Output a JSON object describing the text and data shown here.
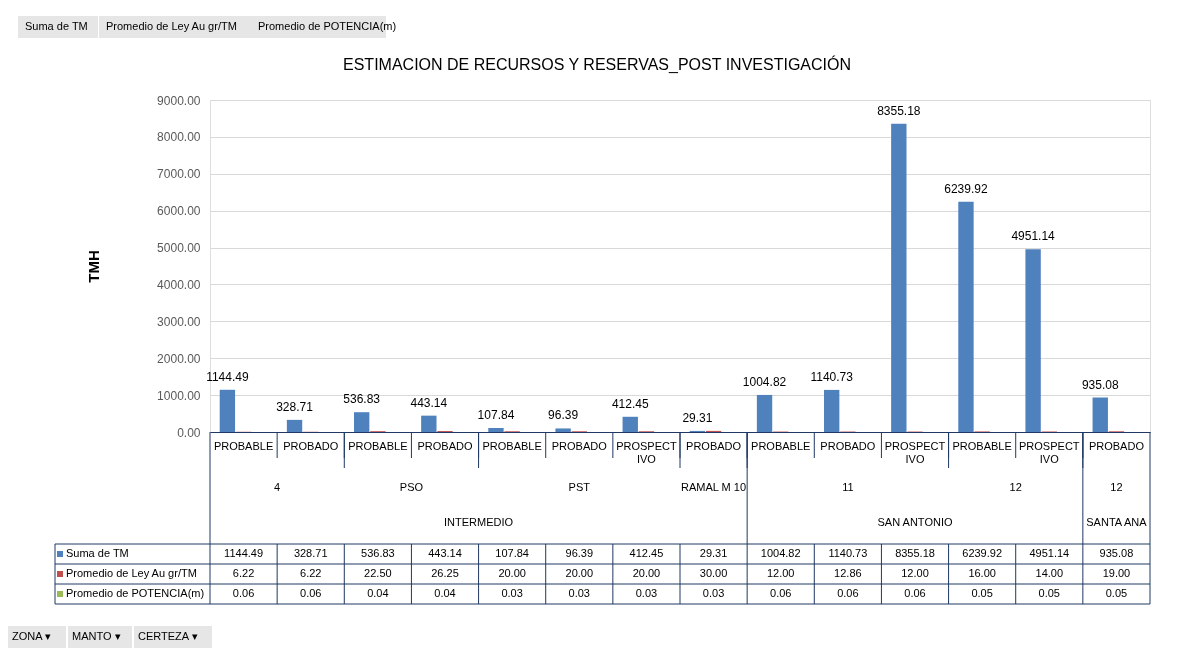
{
  "chart_data": {
    "type": "bar",
    "title": "ESTIMACION DE RECURSOS Y RESERVAS_POST INVESTIGACIÓN",
    "ylabel": "TMH",
    "categories": [
      "PROBABLE",
      "PROBADO",
      "PROBABLE",
      "PROBADO",
      "PROBABLE",
      "PROBADO",
      "PROSPECTIVO",
      "PROBADO",
      "PROBABLE",
      "PROBADO",
      "PROSPECTIVO",
      "PROBABLE",
      "PROSPECTIVO",
      "PROBADO"
    ],
    "series": [
      {
        "name": "Suma de TM",
        "color": "#4f81bd",
        "values": [
          1144.49,
          328.71,
          536.83,
          443.14,
          107.84,
          96.39,
          412.45,
          29.31,
          1004.82,
          1140.73,
          8355.18,
          6239.92,
          4951.14,
          935.08
        ],
        "value_labels": [
          "1144.49",
          "328.71",
          "536.83",
          "443.14",
          "107.84",
          "96.39",
          "412.45",
          "29.31",
          "1004.82",
          "1140.73",
          "8355.18",
          "6239.92",
          "4951.14",
          "935.08"
        ]
      },
      {
        "name": "Promedio de Ley Au gr/TM",
        "color": "#c0504d",
        "values": [
          6.22,
          6.22,
          22.5,
          26.25,
          20.0,
          20.0,
          20.0,
          30.0,
          12.0,
          12.86,
          12.0,
          16.0,
          14.0,
          19.0
        ],
        "value_labels": [
          "6.22",
          "6.22",
          "22.50",
          "26.25",
          "20.00",
          "20.00",
          "20.00",
          "30.00",
          "12.00",
          "12.86",
          "12.00",
          "16.00",
          "14.00",
          "19.00"
        ]
      },
      {
        "name": "Promedio de POTENCIA(m)",
        "color": "#9bbb59",
        "values": [
          0.06,
          0.06,
          0.04,
          0.04,
          0.03,
          0.03,
          0.03,
          0.03,
          0.06,
          0.06,
          0.06,
          0.05,
          0.05,
          0.05
        ],
        "value_labels": [
          "0.06",
          "0.06",
          "0.04",
          "0.04",
          "0.03",
          "0.03",
          "0.03",
          "0.03",
          "0.06",
          "0.06",
          "0.06",
          "0.05",
          "0.05",
          "0.05"
        ]
      }
    ],
    "ylim": [
      0,
      9000
    ],
    "yticks": [
      {
        "value": 0,
        "label": "0.00"
      },
      {
        "value": 1000,
        "label": "1000.00"
      },
      {
        "value": 2000,
        "label": "2000.00"
      },
      {
        "value": 3000,
        "label": "3000.00"
      },
      {
        "value": 4000,
        "label": "4000.00"
      },
      {
        "value": 5000,
        "label": "5000.00"
      },
      {
        "value": 6000,
        "label": "6000.00"
      },
      {
        "value": 7000,
        "label": "7000.00"
      },
      {
        "value": 8000,
        "label": "8000.00"
      },
      {
        "value": 9000,
        "label": "9000.00"
      }
    ],
    "grid": "y",
    "legend": "bottom",
    "annotations": [
      "Suma de TM",
      "Promedio de Ley Au gr/TM",
      "Promedio de POTENCIA(m)",
      "4",
      "PSO",
      "PST",
      "RAMAL M 10",
      "11",
      "12",
      "12",
      "INTERMEDIO",
      "SAN ANTONIO",
      "SANTA ANA",
      "ZONA ▾",
      "MANTO ▾",
      "CERTEZA ▾"
    ]
  }
}
